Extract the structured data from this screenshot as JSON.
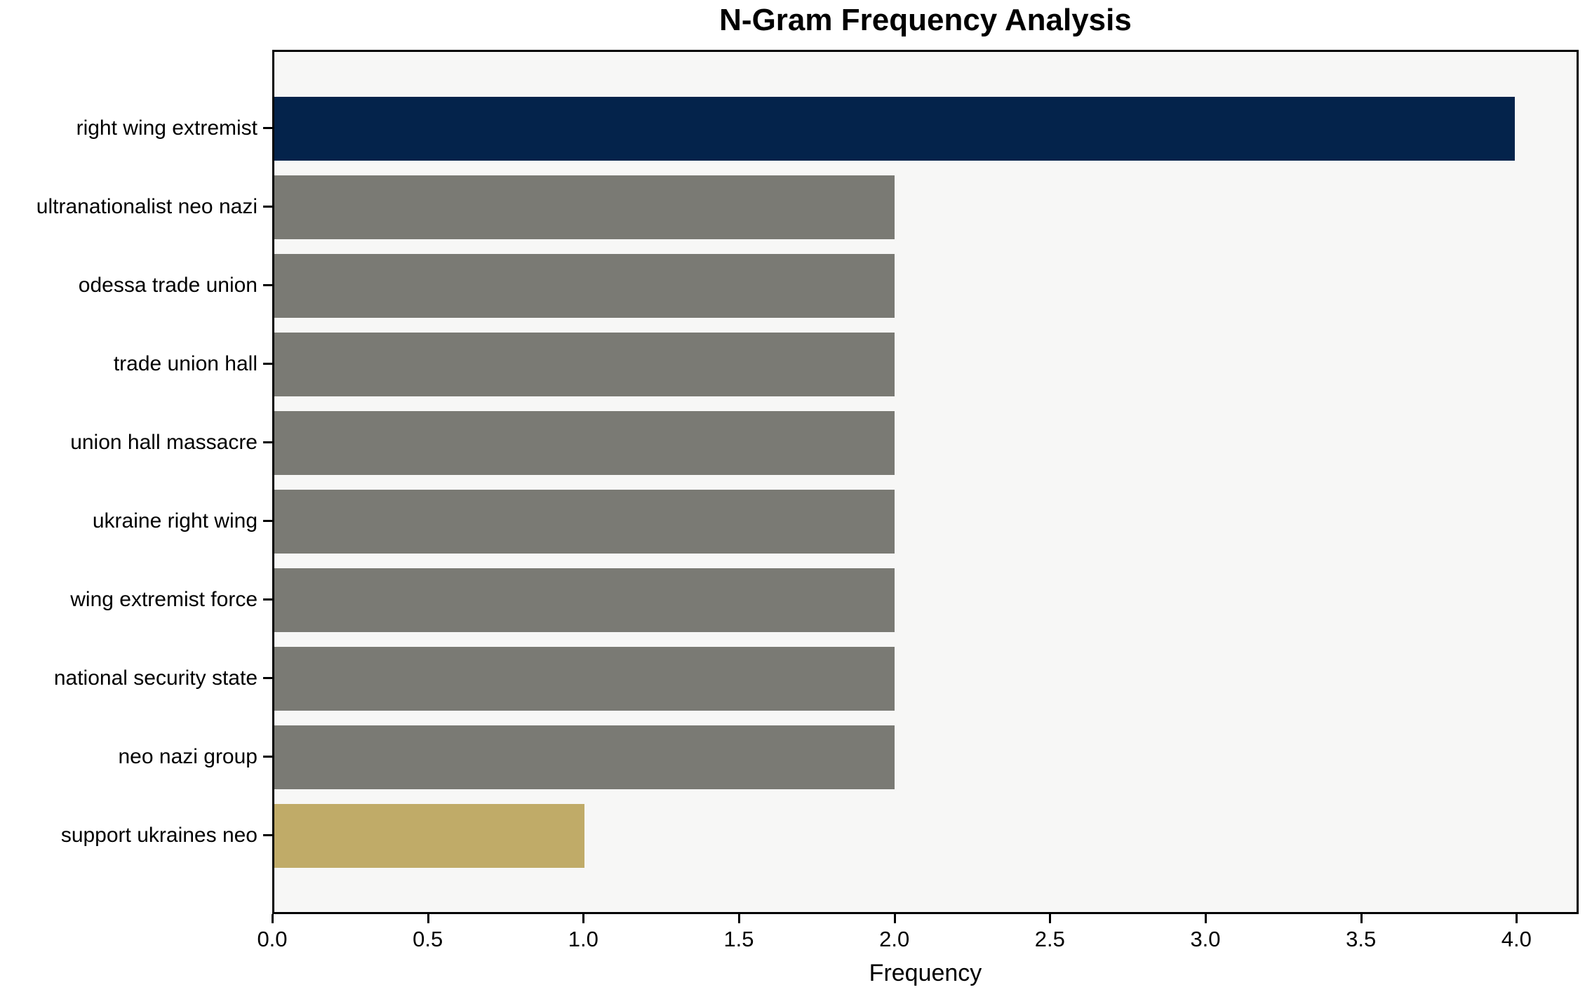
{
  "chart_data": {
    "type": "bar",
    "orientation": "horizontal",
    "title": "N-Gram Frequency Analysis",
    "xlabel": "Frequency",
    "ylabel": "",
    "categories": [
      "right wing extremist",
      "ultranationalist neo nazi",
      "odessa trade union",
      "trade union hall",
      "union hall massacre",
      "ukraine right wing",
      "wing extremist force",
      "national security state",
      "neo nazi group",
      "support ukraines neo"
    ],
    "values": [
      4,
      2,
      2,
      2,
      2,
      2,
      2,
      2,
      2,
      1
    ],
    "bar_colors": [
      "#04234b",
      "#7a7a74",
      "#7a7a74",
      "#7a7a74",
      "#7a7a74",
      "#7a7a74",
      "#7a7a74",
      "#7a7a74",
      "#7a7a74",
      "#c0ab68"
    ],
    "xlim": [
      0,
      4.2
    ],
    "xticks": [
      0,
      0.5,
      1,
      1.5,
      2,
      2.5,
      3,
      3.5,
      4
    ],
    "xtick_labels": [
      "0.0",
      "0.5",
      "1.0",
      "1.5",
      "2.0",
      "2.5",
      "3.0",
      "3.5",
      "4.0"
    ],
    "grid": false,
    "legend": "none",
    "plot_background": "#f7f7f6",
    "figure_background": "#ffffff",
    "spine_color": "#000000",
    "text_color": "#000000"
  }
}
